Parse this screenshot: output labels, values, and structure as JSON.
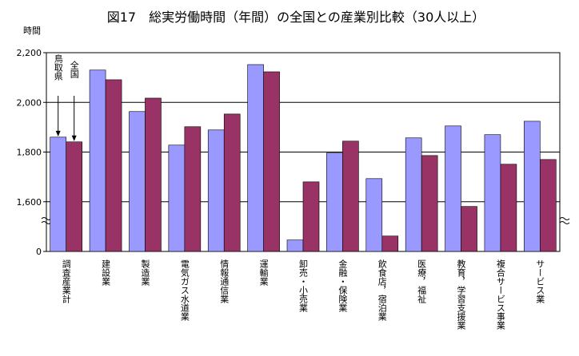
{
  "chart_data": {
    "type": "bar",
    "title": "図17　総実労働時間（年間）の全国との産業別比較（30人以上）",
    "y_label": "時間",
    "categories": [
      "調査産業計",
      "建設業",
      "製造業",
      "電気ガス水道業",
      "情報通信業",
      "運輸業",
      "卸売・小売業",
      "金融・保険業",
      "飲食店，宿泊業",
      "医療，福祉",
      "教育，学習支援業",
      "複合サービス事業",
      "サービス業"
    ],
    "series": [
      {
        "name": "鳥取県",
        "color": "#9999ff",
        "values": [
          1860,
          2130,
          1963,
          1828,
          1889,
          2152,
          1446,
          1796,
          1693,
          1857,
          1905,
          1870,
          1924
        ]
      },
      {
        "name": "全国",
        "color": "#993366",
        "values": [
          1841,
          2091,
          2017,
          1902,
          1953,
          2123,
          1680,
          1844,
          1462,
          1786,
          1581,
          1751,
          1770
        ]
      }
    ],
    "ylim": [
      0,
      2200
    ],
    "ybreak": [
      0,
      1400
    ],
    "yticks": [
      0,
      {
        "value": 1600,
        "label": "1,600"
      },
      {
        "value": 1800,
        "label": "1,800"
      },
      {
        "value": 2000,
        "label": "2,000"
      },
      {
        "value": 2200,
        "label": "2,200"
      }
    ],
    "grid": true
  }
}
